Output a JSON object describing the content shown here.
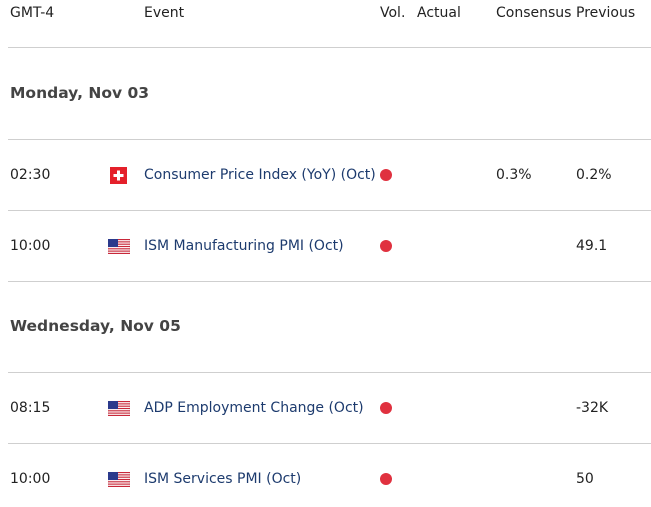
{
  "header": {
    "time": "GMT-4",
    "event": "Event",
    "volatility": "Vol.",
    "actual": "Actual",
    "consensus": "Consensus",
    "previous": "Previous"
  },
  "groups": [
    {
      "date": "Monday, Nov 03",
      "rows": [
        {
          "time": "02:30",
          "event": "Consumer Price Index (YoY) (Oct)",
          "consensus": "0.3%",
          "previous": "0.2%"
        },
        {
          "time": "10:00",
          "event": "ISM Manufacturing PMI (Oct)",
          "previous": "49.1"
        }
      ]
    },
    {
      "date": "Wednesday, Nov 05",
      "rows": [
        {
          "time": "08:15",
          "event": "ADP Employment Change (Oct)",
          "previous": "-32K"
        },
        {
          "time": "10:00",
          "event": "ISM Services PMI (Oct)",
          "previous": "50"
        }
      ]
    }
  ]
}
